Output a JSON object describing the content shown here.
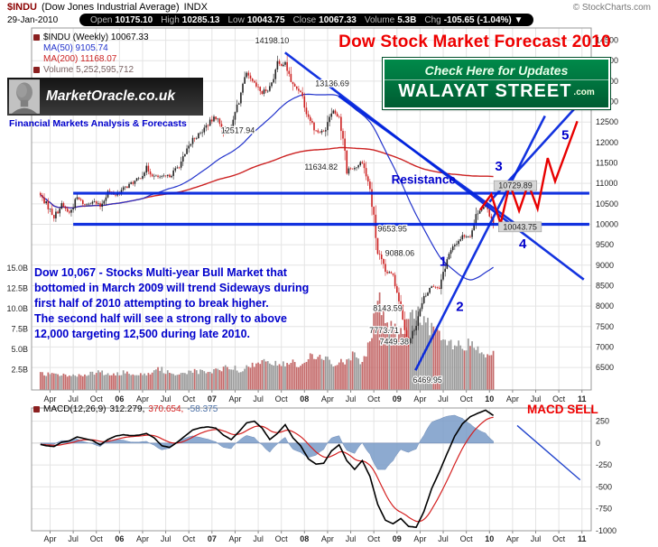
{
  "header": {
    "symbol": "$INDU",
    "name": "(Dow Jones Industrial Average)",
    "exchange": "INDX",
    "copyright": "© StockCharts.com",
    "date": "29-Jan-2010",
    "quote": {
      "open_label": "Open",
      "open": "10175.10",
      "high_label": "High",
      "high": "10285.13",
      "low_label": "Low",
      "low": "10043.75",
      "close_label": "Close",
      "close": "10067.33",
      "volume_label": "Volume",
      "volume": "5.3B",
      "chg_label": "Chg",
      "chg": "-105.65 (-1.04%) ▼"
    }
  },
  "title": "Dow Stock Market Forecast 2010",
  "branding": {
    "logo_text": "MarketOracle.co.uk",
    "logo_tagline": "Financial Markets Analysis & Forecasts",
    "banner_line1": "Check Here for Updates",
    "banner_line2": "WALAYAT STREET",
    "banner_suffix": ".com"
  },
  "legend": {
    "series": "$INDU (Weekly) 10067.33",
    "ma50": "MA(50) 9105.74",
    "ma200": "MA(200) 11168.07",
    "volume": "Volume 5,252,595,712"
  },
  "macd_legend": {
    "name": "MACD(12,26,9)",
    "value_macd": "312.279,",
    "value_signal": "370.654,",
    "value_hist": "-58.375",
    "signal_text": "MACD SELL"
  },
  "annotation": {
    "forecast_text": "Dow 10,067 - Stocks Multi-year Bull Market that\nbottomed in March 2009 will trend Sideways during\nfirst half of 2010 attempting to break higher.\nThe second half will see a strong rally to above\n12,000 targeting 12,500 during late 2010."
  },
  "colors": {
    "symbol_maroon": "#8b0000",
    "title_red": "#ee0000",
    "annotation_blue": "#0000cc",
    "tagline_blue": "#0000cc",
    "overlay_blue": "#0022dd",
    "forecast_red": "#e80000",
    "ma50_blue": "#2233cc",
    "ma200_red": "#cc2222",
    "legend_volume": "#7a6262",
    "candle_up": "#222222",
    "candle_down": "#cc2020",
    "volume_up": "#9a9a9a",
    "volume_down": "#c46a6a",
    "macd_line": "#000000",
    "macd_signal": "#d42020",
    "macd_hist": "#7a9cc8",
    "banner_green_top": "#008a4a",
    "banner_green_bottom": "#005c32"
  },
  "chart_data": [
    {
      "type": "candlestick",
      "title": "$INDU Dow Jones Industrial Average (Weekly) with MA(50), MA(200), volume and 2010 forecast overlay",
      "x_domain": [
        2005.05,
        2011.1
      ],
      "y_domain": [
        5950,
        14800
      ],
      "y_ticks": [
        14500,
        14000,
        13500,
        13000,
        12500,
        12000,
        11500,
        11000,
        10500,
        10000,
        9500,
        9000,
        8500,
        8000,
        7500,
        7000,
        6500
      ],
      "volume_axis": {
        "ticks_billions": [
          15.0,
          12.5,
          10.0,
          7.5,
          5.0,
          2.5
        ]
      },
      "x_ticks": [
        {
          "t": 2005.25,
          "label": "Apr",
          "bold": false
        },
        {
          "t": 2005.5,
          "label": "Jul",
          "bold": false
        },
        {
          "t": 2005.75,
          "label": "Oct",
          "bold": false
        },
        {
          "t": 2006.0,
          "label": "06",
          "bold": true
        },
        {
          "t": 2006.25,
          "label": "Apr",
          "bold": false
        },
        {
          "t": 2006.5,
          "label": "Jul",
          "bold": false
        },
        {
          "t": 2006.75,
          "label": "Oct",
          "bold": false
        },
        {
          "t": 2007.0,
          "label": "07",
          "bold": true
        },
        {
          "t": 2007.25,
          "label": "Apr",
          "bold": false
        },
        {
          "t": 2007.5,
          "label": "Jul",
          "bold": false
        },
        {
          "t": 2007.75,
          "label": "Oct",
          "bold": false
        },
        {
          "t": 2008.0,
          "label": "08",
          "bold": true
        },
        {
          "t": 2008.25,
          "label": "Apr",
          "bold": false
        },
        {
          "t": 2008.5,
          "label": "Jul",
          "bold": false
        },
        {
          "t": 2008.75,
          "label": "Oct",
          "bold": false
        },
        {
          "t": 2009.0,
          "label": "09",
          "bold": true
        },
        {
          "t": 2009.25,
          "label": "Apr",
          "bold": false
        },
        {
          "t": 2009.5,
          "label": "Jul",
          "bold": false
        },
        {
          "t": 2009.75,
          "label": "Oct",
          "bold": false
        },
        {
          "t": 2010.0,
          "label": "10",
          "bold": true
        },
        {
          "t": 2010.25,
          "label": "Apr",
          "bold": false
        },
        {
          "t": 2010.5,
          "label": "Jul",
          "bold": false
        },
        {
          "t": 2010.75,
          "label": "Oct",
          "bold": false
        },
        {
          "t": 2011.0,
          "label": "11",
          "bold": true
        }
      ],
      "monthly_close_volume": [
        [
          2005.125,
          10766,
          1.9
        ],
        [
          2005.208,
          10504,
          2.0
        ],
        [
          2005.292,
          10193,
          1.9
        ],
        [
          2005.375,
          10467,
          1.8
        ],
        [
          2005.458,
          10275,
          1.9
        ],
        [
          2005.542,
          10641,
          1.8
        ],
        [
          2005.625,
          10482,
          1.8
        ],
        [
          2005.708,
          10569,
          2.0
        ],
        [
          2005.792,
          10440,
          2.2
        ],
        [
          2005.875,
          10806,
          2.0
        ],
        [
          2005.958,
          10718,
          1.8
        ],
        [
          2006.042,
          10865,
          2.2
        ],
        [
          2006.125,
          10993,
          2.0
        ],
        [
          2006.208,
          11109,
          2.1
        ],
        [
          2006.292,
          11367,
          2.0
        ],
        [
          2006.375,
          11168,
          2.4
        ],
        [
          2006.458,
          11150,
          2.5
        ],
        [
          2006.542,
          11186,
          2.1
        ],
        [
          2006.625,
          11381,
          2.0
        ],
        [
          2006.708,
          11679,
          2.1
        ],
        [
          2006.792,
          12080,
          2.3
        ],
        [
          2006.875,
          12222,
          2.2
        ],
        [
          2006.958,
          12463,
          2.0
        ],
        [
          2007.042,
          12622,
          2.5
        ],
        [
          2007.125,
          12269,
          2.6
        ],
        [
          2007.208,
          12354,
          2.9
        ],
        [
          2007.292,
          13063,
          2.5
        ],
        [
          2007.375,
          13628,
          2.7
        ],
        [
          2007.458,
          13409,
          3.0
        ],
        [
          2007.542,
          13212,
          3.4
        ],
        [
          2007.625,
          13358,
          3.8
        ],
        [
          2007.708,
          13896,
          2.9
        ],
        [
          2007.792,
          13930,
          3.2
        ],
        [
          2007.875,
          13372,
          3.5
        ],
        [
          2007.958,
          13265,
          2.8
        ],
        [
          2008.042,
          12650,
          4.2
        ],
        [
          2008.125,
          12266,
          3.6
        ],
        [
          2008.208,
          12263,
          4.1
        ],
        [
          2008.292,
          12820,
          3.4
        ],
        [
          2008.375,
          12638,
          3.2
        ],
        [
          2008.458,
          11350,
          3.8
        ],
        [
          2008.542,
          11378,
          4.6
        ],
        [
          2008.625,
          11544,
          3.4
        ],
        [
          2008.708,
          10851,
          5.8
        ],
        [
          2008.792,
          9325,
          11.2
        ],
        [
          2008.875,
          8829,
          9.0
        ],
        [
          2008.958,
          8776,
          7.4
        ],
        [
          2009.042,
          8001,
          7.0
        ],
        [
          2009.125,
          7063,
          8.1
        ],
        [
          2009.208,
          7609,
          9.5
        ],
        [
          2009.292,
          8168,
          8.8
        ],
        [
          2009.375,
          8500,
          7.6
        ],
        [
          2009.458,
          8447,
          6.4
        ],
        [
          2009.542,
          9172,
          5.6
        ],
        [
          2009.625,
          9496,
          5.4
        ],
        [
          2009.708,
          9712,
          5.2
        ],
        [
          2009.792,
          9713,
          5.6
        ],
        [
          2009.875,
          10345,
          4.8
        ],
        [
          2009.958,
          10428,
          4.2
        ],
        [
          2010.042,
          10067,
          5.3
        ]
      ],
      "price_labels": [
        {
          "t": 2007.65,
          "price": 14420,
          "text": "14198.10",
          "boxed": false
        },
        {
          "t": 2008.3,
          "price": 13380,
          "text": "13136.69",
          "boxed": false
        },
        {
          "t": 2007.28,
          "price": 12230,
          "text": "12517.94",
          "boxed": false
        },
        {
          "t": 2008.18,
          "price": 11330,
          "text": "11634.82",
          "boxed": false
        },
        {
          "t": 2008.95,
          "price": 9820,
          "text": "9653.95",
          "boxed": false
        },
        {
          "t": 2009.03,
          "price": 9230,
          "text": "9088.06",
          "boxed": false
        },
        {
          "t": 2008.9,
          "price": 7880,
          "text": "8143.59",
          "boxed": false
        },
        {
          "t": 2008.86,
          "price": 7340,
          "text": "7773.71",
          "boxed": false
        },
        {
          "t": 2008.97,
          "price": 7070,
          "text": "7449.38",
          "boxed": false
        },
        {
          "t": 2009.33,
          "price": 6130,
          "text": "6469.95",
          "boxed": false
        },
        {
          "t": 2010.28,
          "price": 10880,
          "text": "10729.89",
          "boxed": true
        },
        {
          "t": 2010.33,
          "price": 9870,
          "text": "10043.75",
          "boxed": true
        }
      ],
      "overlays": {
        "h_lines": [
          {
            "price": 10760,
            "t0": 2005.5,
            "t1": 2011.08
          },
          {
            "price": 10000,
            "t0": 2005.5,
            "t1": 2011.08
          }
        ],
        "trend_lines": [
          {
            "p0": [
              2007.79,
              14198
            ],
            "p1": [
              2011.02,
              8650
            ]
          },
          {
            "p0": [
              2008.37,
              13137
            ],
            "p1": [
              2010.35,
              9900
            ]
          },
          {
            "p0": [
              2009.2,
              6430
            ],
            "p1": [
              2010.6,
              12650
            ]
          },
          {
            "p0": [
              2010.0,
              10550
            ],
            "p1": [
              2011.05,
              13150
            ]
          }
        ],
        "forecast_zigzag": [
          [
            2009.9,
            10350
          ],
          [
            2010.02,
            10730
          ],
          [
            2010.12,
            10010
          ],
          [
            2010.22,
            10990
          ],
          [
            2010.32,
            10330
          ],
          [
            2010.42,
            10990
          ],
          [
            2010.52,
            10380
          ],
          [
            2010.63,
            11620
          ],
          [
            2010.71,
            11050
          ],
          [
            2010.95,
            12520
          ]
        ],
        "wave_labels": [
          {
            "t": 2009.5,
            "price": 9100,
            "text": "1"
          },
          {
            "t": 2009.68,
            "price": 7990,
            "text": "2"
          },
          {
            "t": 2010.1,
            "price": 11420,
            "text": "3"
          },
          {
            "t": 2010.36,
            "price": 9520,
            "text": "4"
          },
          {
            "t": 2010.82,
            "price": 12180,
            "text": "5"
          }
        ],
        "resistance_label": {
          "t": 2008.94,
          "price": 11080,
          "text": "Resistance"
        }
      }
    },
    {
      "type": "line",
      "title": "MACD(12,26,9) weekly",
      "y_domain": [
        -1000,
        400
      ],
      "y_ticks": [
        250,
        0,
        -250,
        -500,
        -750,
        -1000
      ],
      "monthly_macd": [
        [
          2005.125,
          -10
        ],
        [
          2005.208,
          -30
        ],
        [
          2005.292,
          -40
        ],
        [
          2005.375,
          10
        ],
        [
          2005.458,
          25
        ],
        [
          2005.542,
          70
        ],
        [
          2005.625,
          50
        ],
        [
          2005.708,
          30
        ],
        [
          2005.792,
          -20
        ],
        [
          2005.875,
          40
        ],
        [
          2005.958,
          80
        ],
        [
          2006.042,
          95
        ],
        [
          2006.125,
          85
        ],
        [
          2006.208,
          90
        ],
        [
          2006.292,
          110
        ],
        [
          2006.375,
          60
        ],
        [
          2006.458,
          -30
        ],
        [
          2006.542,
          -50
        ],
        [
          2006.625,
          10
        ],
        [
          2006.708,
          80
        ],
        [
          2006.792,
          150
        ],
        [
          2006.875,
          175
        ],
        [
          2006.958,
          185
        ],
        [
          2007.042,
          170
        ],
        [
          2007.125,
          90
        ],
        [
          2007.208,
          40
        ],
        [
          2007.292,
          130
        ],
        [
          2007.375,
          230
        ],
        [
          2007.458,
          250
        ],
        [
          2007.542,
          170
        ],
        [
          2007.625,
          40
        ],
        [
          2007.708,
          110
        ],
        [
          2007.792,
          210
        ],
        [
          2007.875,
          60
        ],
        [
          2007.958,
          -30
        ],
        [
          2008.042,
          -180
        ],
        [
          2008.125,
          -240
        ],
        [
          2008.208,
          -230
        ],
        [
          2008.292,
          -90
        ],
        [
          2008.375,
          -20
        ],
        [
          2008.458,
          -200
        ],
        [
          2008.542,
          -300
        ],
        [
          2008.625,
          -200
        ],
        [
          2008.708,
          -380
        ],
        [
          2008.792,
          -700
        ],
        [
          2008.875,
          -880
        ],
        [
          2008.958,
          -920
        ],
        [
          2009.042,
          -860
        ],
        [
          2009.125,
          -950
        ],
        [
          2009.208,
          -960
        ],
        [
          2009.292,
          -780
        ],
        [
          2009.375,
          -520
        ],
        [
          2009.458,
          -330
        ],
        [
          2009.542,
          -120
        ],
        [
          2009.625,
          80
        ],
        [
          2009.708,
          220
        ],
        [
          2009.792,
          300
        ],
        [
          2009.875,
          340
        ],
        [
          2009.958,
          375
        ],
        [
          2010.042,
          315
        ]
      ],
      "trend_line": [
        [
          2010.3,
          200
        ],
        [
          2010.98,
          -420
        ]
      ]
    }
  ]
}
